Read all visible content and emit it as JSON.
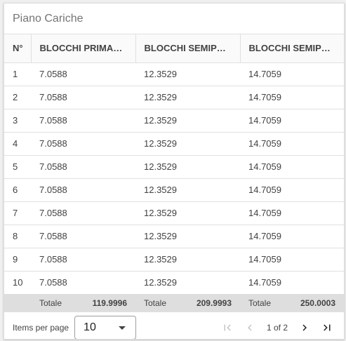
{
  "title": "Piano Cariche",
  "columns": [
    "N°",
    "BLOCCHI PRIMA…",
    "BLOCCHI SEMIP…",
    "BLOCCHI SEMIP…"
  ],
  "rows": [
    [
      "1",
      "7.0588",
      "12.3529",
      "14.7059"
    ],
    [
      "2",
      "7.0588",
      "12.3529",
      "14.7059"
    ],
    [
      "3",
      "7.0588",
      "12.3529",
      "14.7059"
    ],
    [
      "4",
      "7.0588",
      "12.3529",
      "14.7059"
    ],
    [
      "5",
      "7.0588",
      "12.3529",
      "14.7059"
    ],
    [
      "6",
      "7.0588",
      "12.3529",
      "14.7059"
    ],
    [
      "7",
      "7.0588",
      "12.3529",
      "14.7059"
    ],
    [
      "8",
      "7.0588",
      "12.3529",
      "14.7059"
    ],
    [
      "9",
      "7.0588",
      "12.3529",
      "14.7059"
    ],
    [
      "10",
      "7.0588",
      "12.3529",
      "14.7059"
    ]
  ],
  "totals": [
    {
      "label": "Totale",
      "value": "119.9996"
    },
    {
      "label": "Totale",
      "value": "209.9993"
    },
    {
      "label": "Totale",
      "value": "250.0003"
    }
  ],
  "pager": {
    "items_per_page_label": "Items per page",
    "items_per_page_value": "10",
    "page_info": "1 of 2",
    "icons": {
      "first": "first-page-icon",
      "prev": "chevron-left-icon",
      "next": "chevron-right-icon",
      "last": "last-page-icon",
      "dropdown": "caret-down-icon"
    }
  },
  "colors": {
    "footer_bg": "#dedede",
    "border": "#e0e0e0",
    "disabled_icon": "#c4c4c4"
  }
}
